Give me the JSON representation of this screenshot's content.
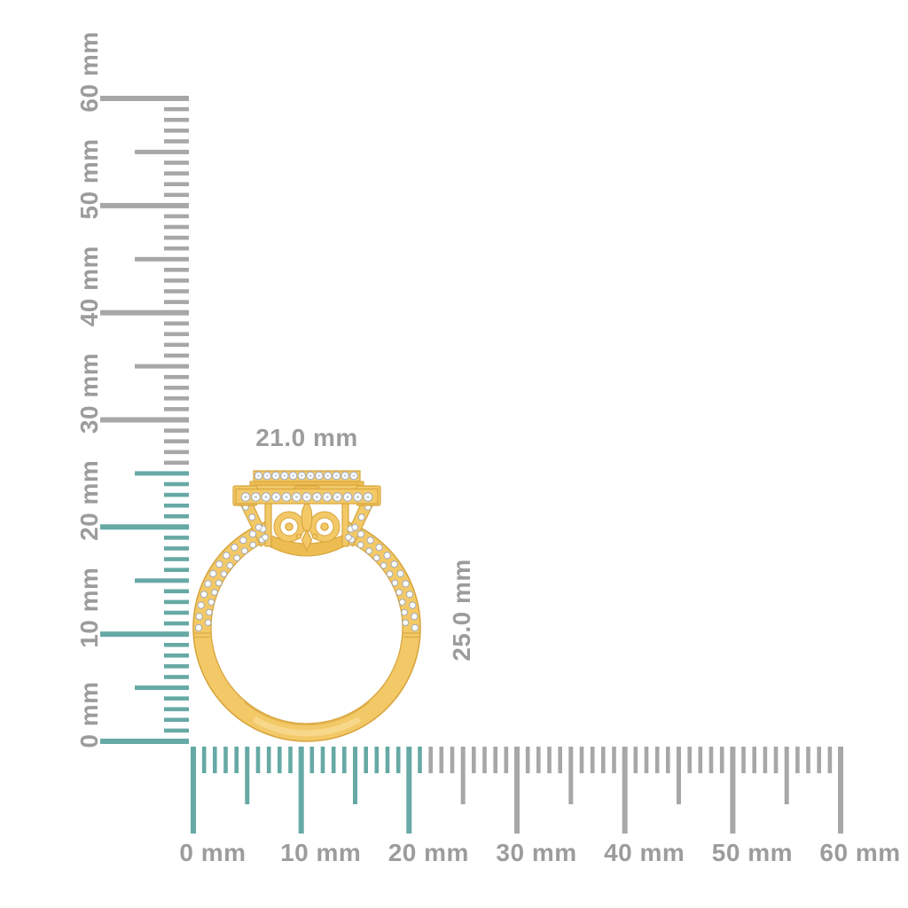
{
  "scene": {
    "description": "Side-profile render of a yellow gold halo diamond ring shown against two millimeter rulers indicating its outer dimensions",
    "object_name": "gold-diamond-halo-ring"
  },
  "measurement": {
    "width_label": "21.0 mm",
    "height_label": "25.0 mm",
    "width_mm": 21.0,
    "height_mm": 25.0,
    "unit": "mm"
  },
  "rulers": {
    "unit": "mm",
    "horizontal": {
      "min_mm": 0,
      "max_mm": 60,
      "label_step_mm": 10,
      "labels": [
        "0 mm",
        "10 mm",
        "20 mm",
        "30 mm",
        "40 mm",
        "50 mm",
        "60 mm"
      ],
      "highlighted_range_mm": [
        0,
        21
      ]
    },
    "vertical": {
      "min_mm": 0,
      "max_mm": 60,
      "label_step_mm": 10,
      "labels": [
        "0 mm",
        "10 mm",
        "20 mm",
        "30 mm",
        "40 mm",
        "50 mm",
        "60 mm"
      ],
      "highlighted_range_mm": [
        0,
        25
      ]
    }
  },
  "colors": {
    "highlight_teal": "#66A9A5",
    "tick_gray": "#A7A7A7",
    "label_gray": "#9C9C9C",
    "gold": "#F3C967",
    "gold_mid": "#EDBD52",
    "gold_light": "#F7D88E",
    "gold_dark": "#D8A53E",
    "gold_shade": "#D9A743",
    "diamond_white": "#FDFDFE",
    "diamond_edge": "#A2ACBC",
    "diamond_facet": "#C7CFDA"
  }
}
